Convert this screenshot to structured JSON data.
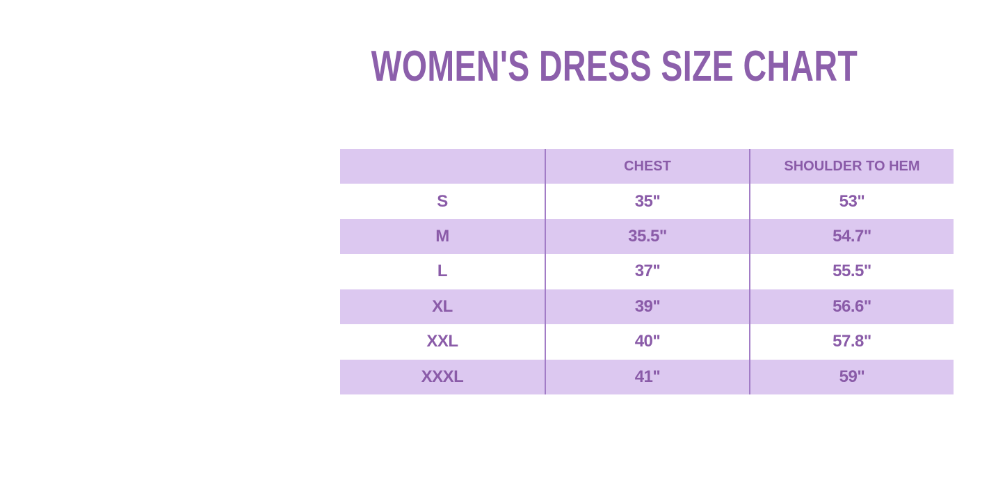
{
  "colors": {
    "background": "#ffffff",
    "lavender": "#dcc8f0",
    "row-white": "#ffffff",
    "line": "#a27cc6",
    "text": "#8a5ba8",
    "title": "#8c5fab"
  },
  "chart_data": {
    "type": "table",
    "title": "WOMEN'S DRESS SIZE CHART",
    "columns": [
      "",
      "CHEST",
      "SHOULDER TO HEM"
    ],
    "rows": [
      [
        "S",
        "35\"",
        "53\""
      ],
      [
        "M",
        "35.5\"",
        "54.7\""
      ],
      [
        "L",
        "37\"",
        "55.5\""
      ],
      [
        "XL",
        "39\"",
        "56.6\""
      ],
      [
        "XXL",
        "40\"",
        "57.8\""
      ],
      [
        "XXXL",
        "41\"",
        "59\""
      ]
    ],
    "layout": {
      "grid": "vertical-separators-only",
      "header_fill": "#dcc8f0",
      "alternating_row_fills": [
        "#ffffff",
        "#dcc8f0"
      ],
      "text_alignment": "center"
    }
  }
}
